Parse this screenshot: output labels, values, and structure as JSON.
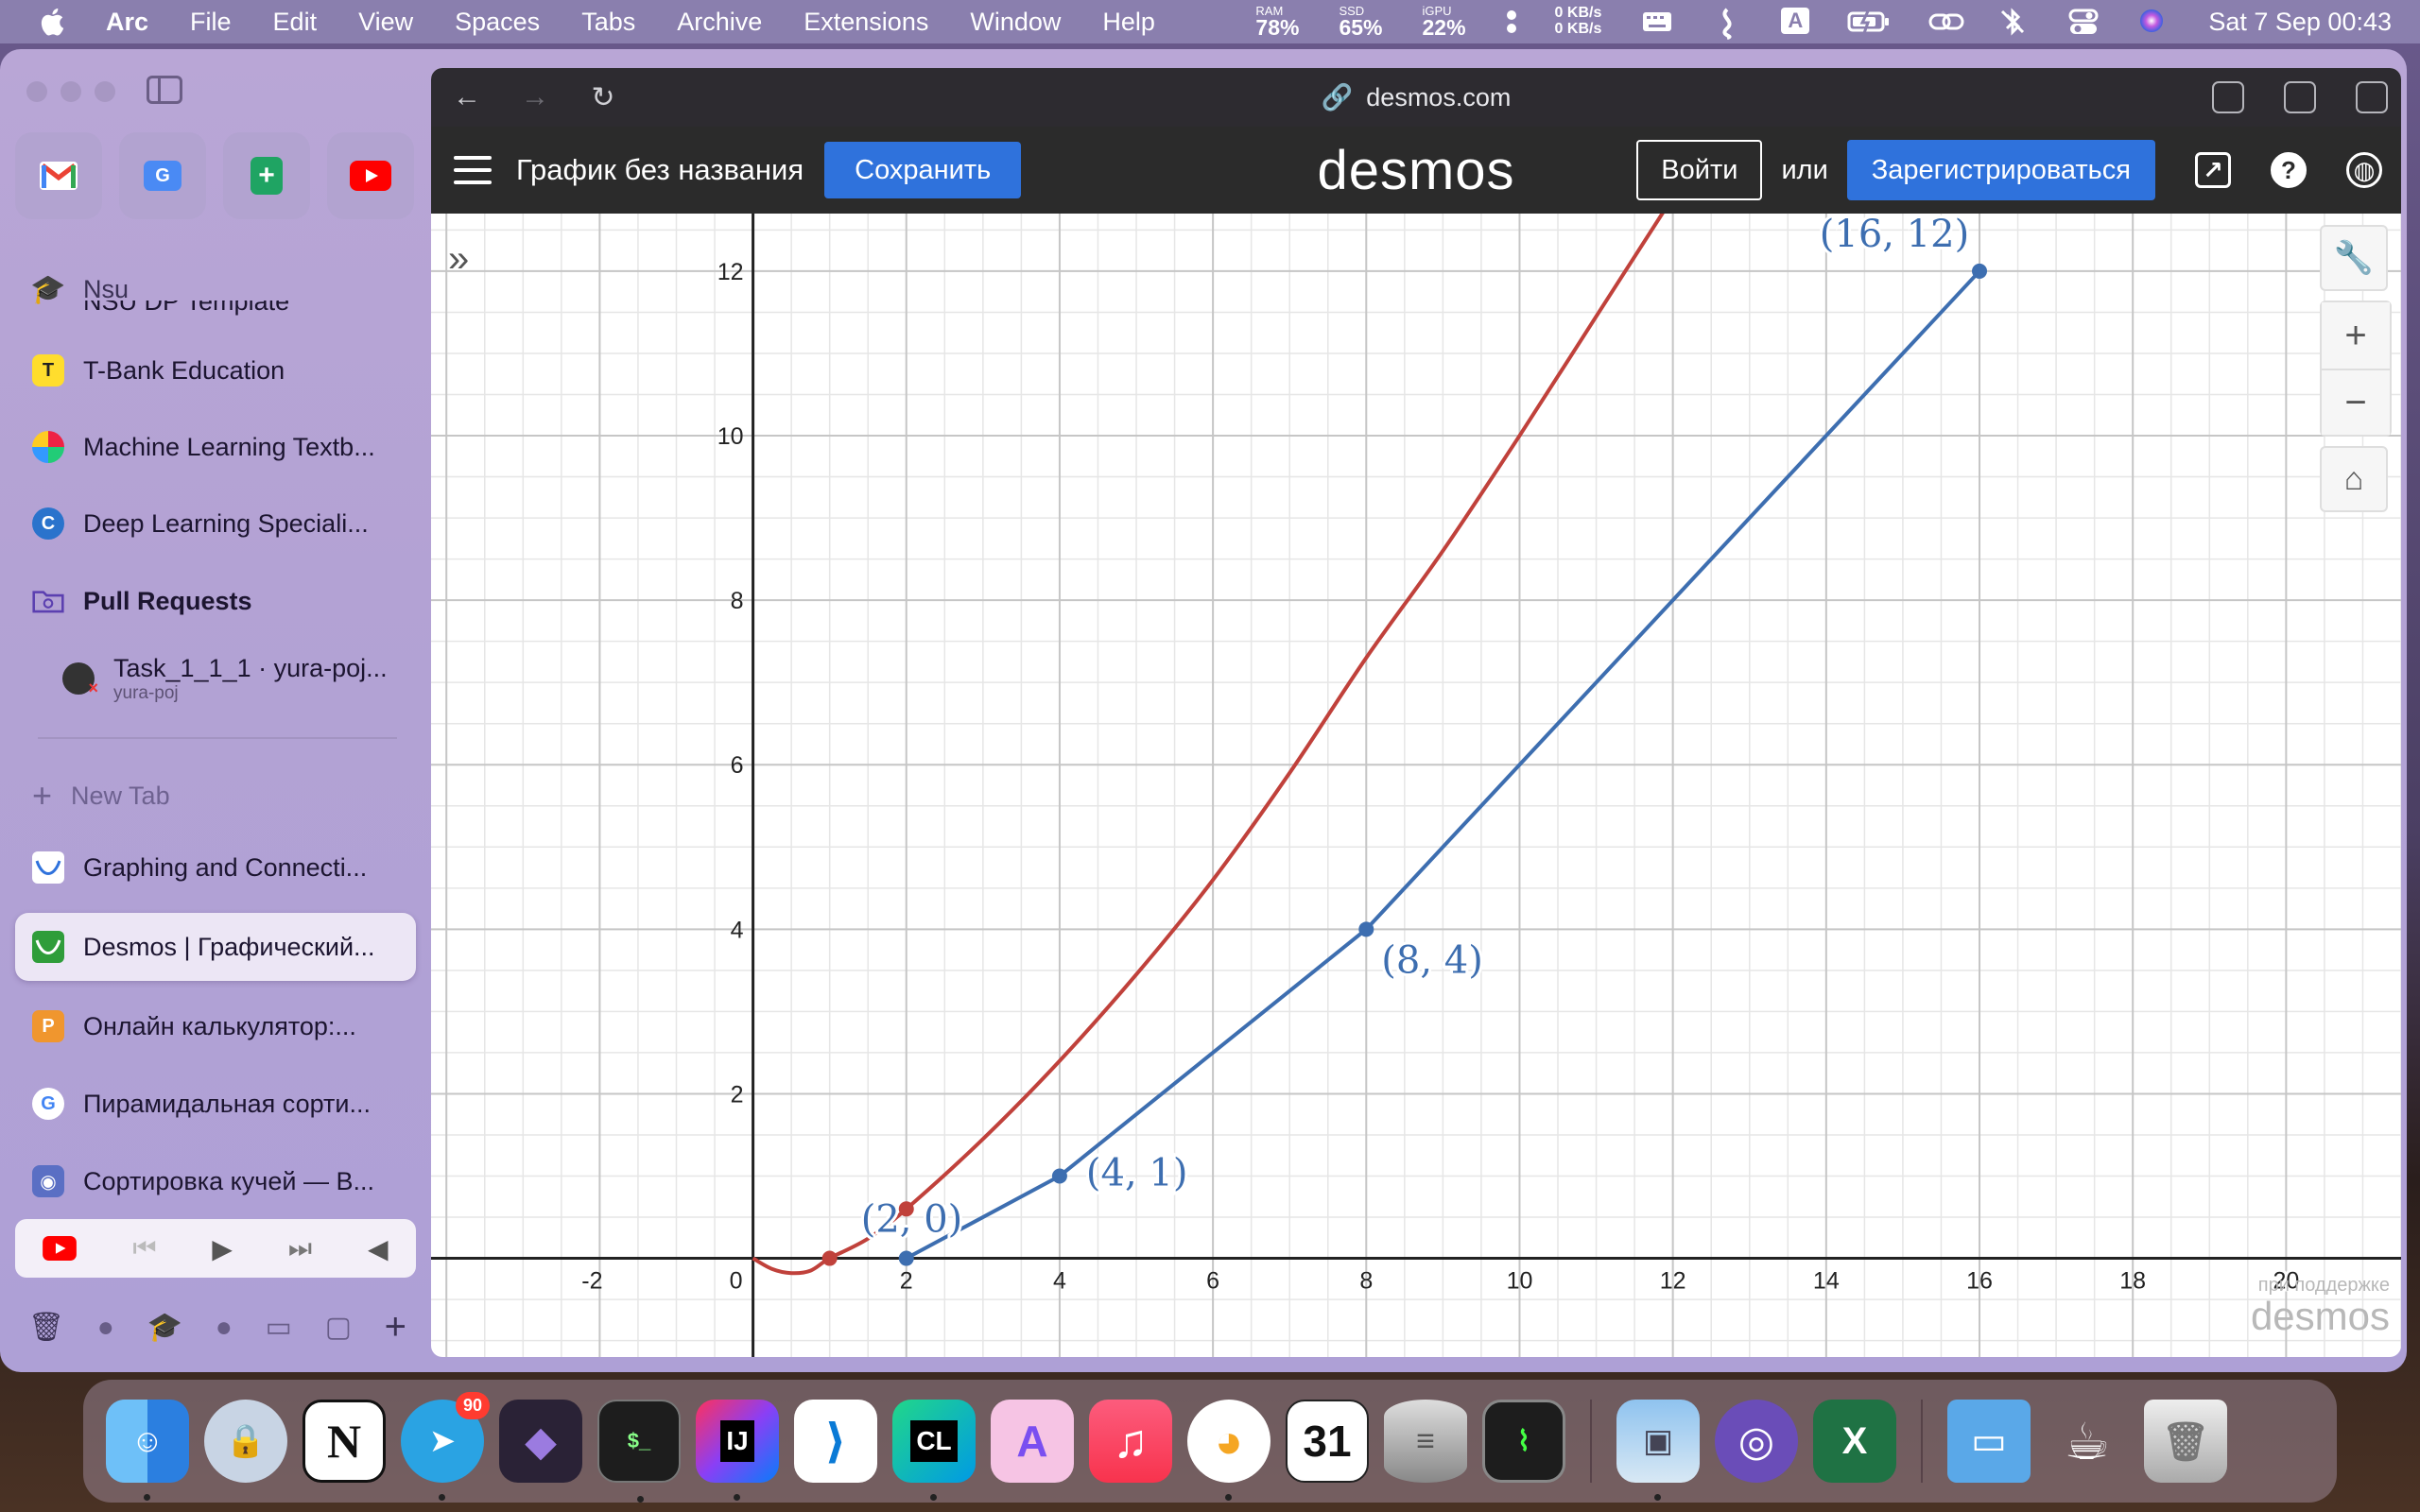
{
  "menubar": {
    "app": "Arc",
    "items": [
      "File",
      "Edit",
      "View",
      "Spaces",
      "Tabs",
      "Archive",
      "Extensions",
      "Window",
      "Help"
    ],
    "stats": [
      {
        "label": "RAM",
        "value": "78%"
      },
      {
        "label": "SSD",
        "value": "65%"
      },
      {
        "label": "iGPU",
        "value": "22%"
      }
    ],
    "net_up": "0 KB/s",
    "net_down": "0 KB/s",
    "input_source": "A",
    "clock": "Sat 7 Sep  00:43"
  },
  "sidebar": {
    "favorites": [
      "gmail-icon",
      "google-translate-icon",
      "google-sheets-icon",
      "youtube-icon"
    ],
    "pinned_folder": "Nsu",
    "pinned_partial": "NSU DP Template",
    "pinned": [
      {
        "label": "T-Bank Education",
        "icon": "T"
      },
      {
        "label": "Machine Learning Textb...",
        "icon": ""
      },
      {
        "label": "Deep Learning Speciali...",
        "icon": "C"
      }
    ],
    "section": "Pull Requests",
    "sub_item": {
      "title": "Task_1_1_1 · yura-poj...",
      "subtitle": "yura-poj"
    },
    "new_tab": "New Tab",
    "tabs": [
      {
        "label": "Graphing and Connecti...",
        "active": false
      },
      {
        "label": "Desmos | Графический...",
        "active": true
      },
      {
        "label": "Онлайн калькулятор:...",
        "active": false
      },
      {
        "label": "Пирамидальная сорти...",
        "active": false
      },
      {
        "label": "Сортировка кучей — В...",
        "active": false
      }
    ]
  },
  "browser": {
    "url": "desmos.com"
  },
  "desmos": {
    "title": "График без названия",
    "save": "Сохранить",
    "logo": "desmos",
    "login": "Войти",
    "or": "или",
    "register": "Зарегистрироваться",
    "watermark_top": "при поддержке",
    "watermark_logo": "desmos"
  },
  "chart_data": {
    "type": "line",
    "xlim": [
      -4.2,
      21.5
    ],
    "ylim": [
      -1.2,
      12.7
    ],
    "x_ticks": [
      -2,
      0,
      2,
      4,
      6,
      8,
      10,
      12,
      14,
      16,
      18,
      20
    ],
    "y_ticks": [
      2,
      4,
      6,
      8,
      10,
      12
    ],
    "grid": true,
    "series": [
      {
        "color": "#c0413b",
        "x": [
          0,
          0.25,
          0.5,
          0.75,
          1,
          1.5,
          2,
          3,
          4,
          5,
          6,
          7,
          8,
          9,
          10,
          11,
          12
        ],
        "y": [
          0,
          -0.13,
          -0.18,
          -0.15,
          0,
          0.24,
          0.6,
          1.45,
          2.4,
          3.45,
          4.6,
          5.9,
          7.3,
          8.6,
          10,
          11.45,
          12.9
        ]
      },
      {
        "color": "#3d6eb0",
        "x": [
          2,
          4,
          8,
          16
        ],
        "y": [
          0,
          1,
          4,
          12
        ]
      }
    ],
    "red_points": [
      {
        "x": 1,
        "y": 0
      },
      {
        "x": 2,
        "y": 0.6
      }
    ],
    "points": [
      {
        "x": 2,
        "y": 0,
        "label": "(2, 0)"
      },
      {
        "x": 4,
        "y": 1,
        "label": "(4, 1)"
      },
      {
        "x": 8,
        "y": 4,
        "label": "(8, 4)"
      },
      {
        "x": 16,
        "y": 12,
        "label": "(16, 12)"
      }
    ]
  },
  "dock": {
    "telegram_badge": "90",
    "calendar_day": "31",
    "apps": [
      "Finder",
      "Keychain",
      "Notion",
      "Telegram",
      "Obsidian",
      "Terminal",
      "IntelliJ IDEA",
      "VS Code",
      "CLion",
      "Affinity",
      "Music",
      "Yandex Music",
      "Calendar",
      "Database",
      "Activity Monitor",
      "Preview",
      "qBittorrent",
      "Excel",
      "Downloads",
      "Coffee",
      "Trash"
    ]
  }
}
